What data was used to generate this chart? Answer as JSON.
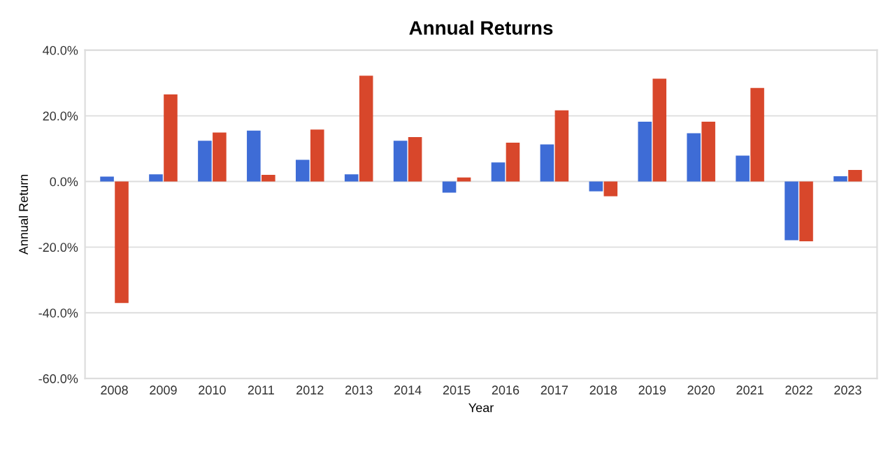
{
  "chart_data": {
    "type": "bar",
    "title": "Annual Returns",
    "xlabel": "Year",
    "ylabel": "Annual Return",
    "categories": [
      "2008",
      "2009",
      "2010",
      "2011",
      "2012",
      "2013",
      "2014",
      "2015",
      "2016",
      "2017",
      "2018",
      "2019",
      "2020",
      "2021",
      "2022",
      "2023"
    ],
    "series": [
      {
        "color": "#3e6cd6",
        "values": [
          1.5,
          2.2,
          12.4,
          15.5,
          6.6,
          2.2,
          12.4,
          -3.4,
          5.8,
          11.3,
          -3.0,
          18.2,
          14.7,
          7.9,
          -17.9,
          1.6
        ]
      },
      {
        "color": "#d8472b",
        "values": [
          -37.0,
          26.5,
          14.9,
          2.0,
          15.8,
          32.2,
          13.5,
          1.2,
          11.8,
          21.7,
          -4.5,
          31.3,
          18.2,
          28.5,
          -18.2,
          3.5
        ]
      }
    ],
    "ylim": [
      -60,
      40
    ],
    "yticks": [
      {
        "value": -60,
        "label": "-60.0%"
      },
      {
        "value": -40,
        "label": "-40.0%"
      },
      {
        "value": -20,
        "label": "-20.0%"
      },
      {
        "value": 0,
        "label": "0.0%"
      },
      {
        "value": 20,
        "label": "20.0%"
      },
      {
        "value": 40,
        "label": "40.0%"
      }
    ],
    "grid": "y"
  }
}
